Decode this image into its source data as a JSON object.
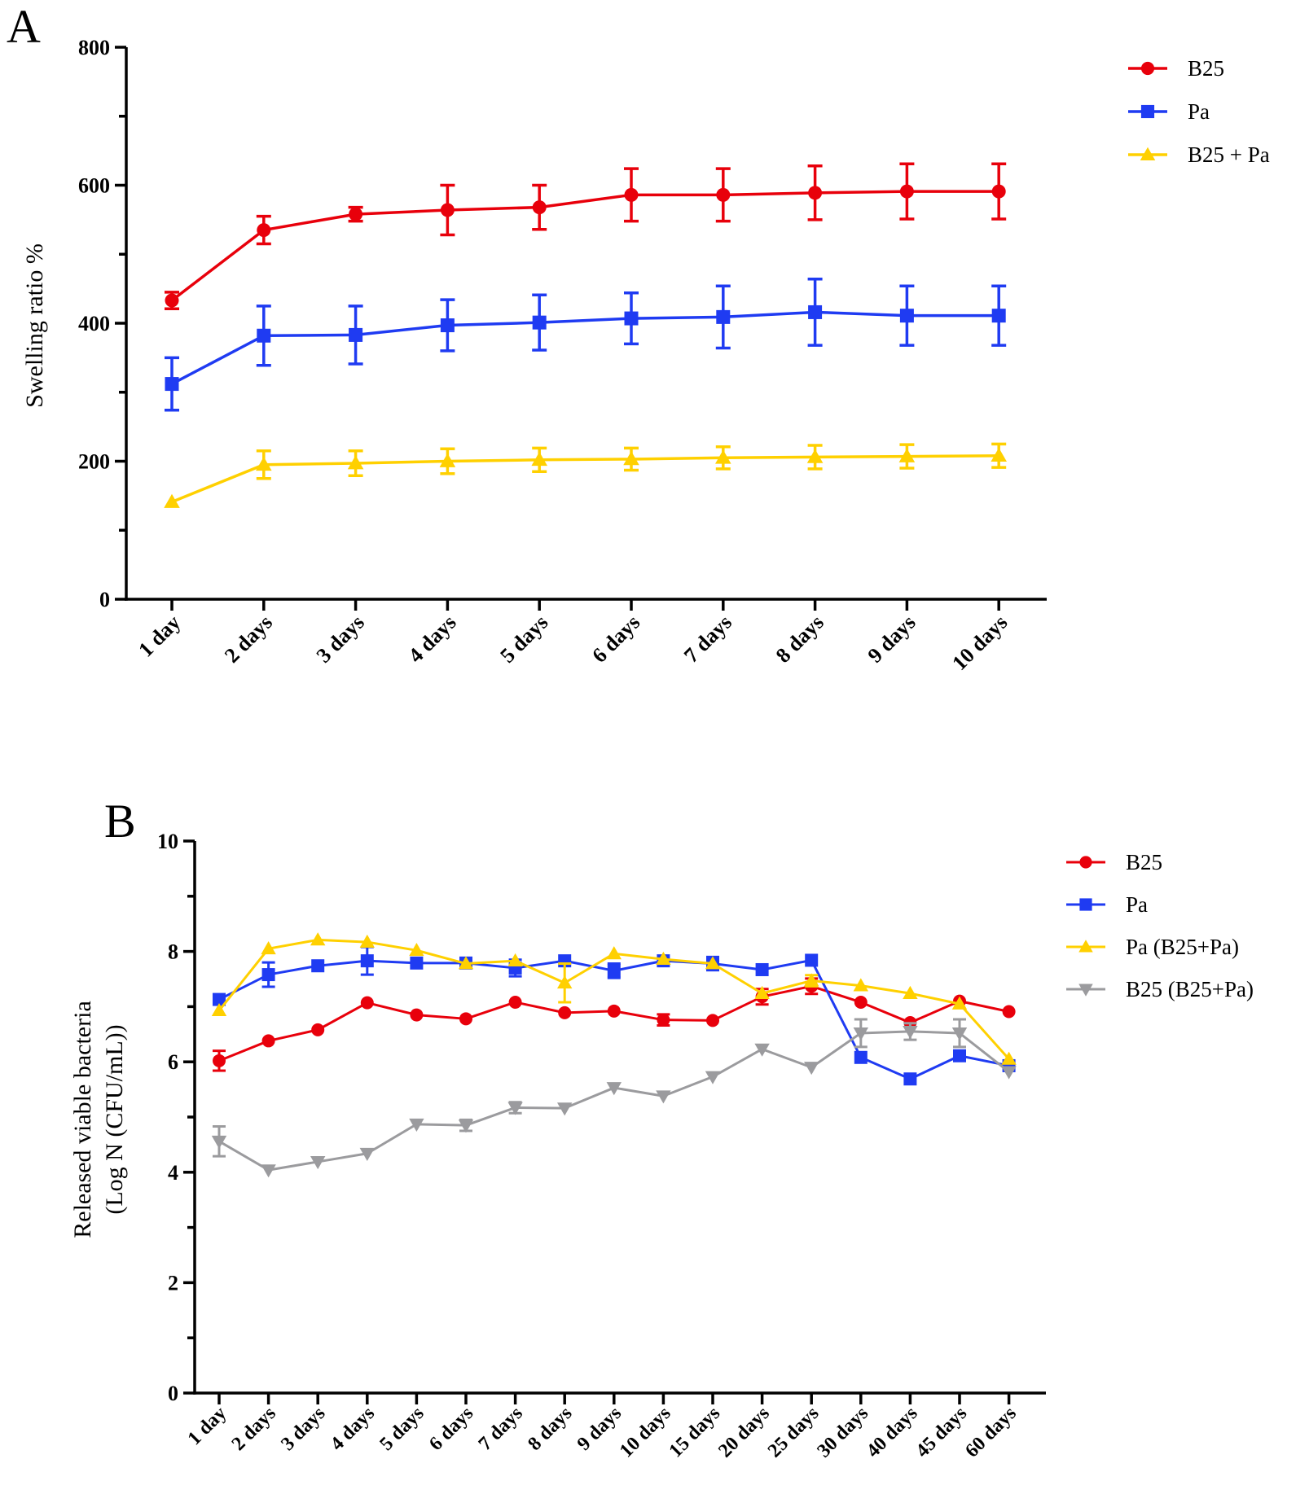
{
  "chart_data": [
    {
      "panel": "A",
      "type": "line",
      "title": "",
      "xlabel": "",
      "ylabel": "Swelling ratio %",
      "ylim": [
        0,
        800
      ],
      "yticks": [
        0,
        200,
        400,
        600,
        800
      ],
      "grid": false,
      "legend_position": "top-right",
      "categories": [
        "1 day",
        "2 days",
        "3 days",
        "4 days",
        "5 days",
        "6 days",
        "7 days",
        "8 days",
        "9 days",
        "10 days"
      ],
      "series": [
        {
          "name": "B25",
          "color": "#e8000b",
          "marker": "circle",
          "values": [
            433,
            535,
            558,
            564,
            568,
            586,
            586,
            589,
            591,
            591
          ],
          "errors": [
            12,
            20,
            10,
            36,
            32,
            38,
            38,
            39,
            40,
            40
          ]
        },
        {
          "name": "Pa",
          "color": "#1f3bf2",
          "marker": "square",
          "values": [
            312,
            382,
            383,
            397,
            401,
            407,
            409,
            416,
            411,
            411
          ],
          "errors": [
            38,
            43,
            42,
            37,
            40,
            37,
            45,
            48,
            43,
            43
          ]
        },
        {
          "name": "B25 + Pa",
          "color": "#ffd000",
          "marker": "triangle-up",
          "values": [
            141,
            195,
            197,
            200,
            202,
            203,
            205,
            206,
            207,
            208
          ],
          "errors": [
            0,
            20,
            18,
            18,
            17,
            16,
            16,
            17,
            17,
            17
          ]
        }
      ]
    },
    {
      "panel": "B",
      "type": "line",
      "title": "",
      "xlabel": "",
      "ylabel": "Released viable bacteria",
      "ylabel2": "(Log N (CFU/mL))",
      "ylim": [
        0,
        10
      ],
      "yticks": [
        0,
        2,
        4,
        6,
        8,
        10
      ],
      "grid": false,
      "legend_position": "top-right",
      "categories": [
        "1 day",
        "2 days",
        "3 days",
        "4 days",
        "5 days",
        "6 days",
        "7 days",
        "8 days",
        "9 days",
        "10 days",
        "15 days",
        "20 days",
        "25 days",
        "30 days",
        "40 days",
        "45 days",
        "60 days"
      ],
      "series": [
        {
          "name": "B25",
          "color": "#e8000b",
          "marker": "circle",
          "values": [
            6.02,
            6.38,
            6.58,
            7.07,
            6.85,
            6.78,
            7.08,
            6.89,
            6.92,
            6.76,
            6.75,
            7.18,
            7.37,
            7.08,
            6.71,
            7.1,
            6.91
          ],
          "errors": [
            0.18,
            0,
            0,
            0,
            0,
            0,
            0,
            0,
            0,
            0.1,
            0,
            0.14,
            0.14,
            0,
            0,
            0,
            0
          ]
        },
        {
          "name": "Pa",
          "color": "#1f3bf2",
          "marker": "square",
          "values": [
            7.13,
            7.58,
            7.74,
            7.83,
            7.79,
            7.79,
            7.7,
            7.83,
            7.65,
            7.83,
            7.78,
            7.67,
            7.84,
            6.08,
            5.69,
            6.11,
            5.93
          ],
          "errors": [
            0,
            0.22,
            0,
            0.25,
            0,
            0,
            0.15,
            0,
            0.13,
            0,
            0.12,
            0,
            0,
            0,
            0,
            0,
            0
          ]
        },
        {
          "name": "Pa (B25+Pa)",
          "color": "#ffd000",
          "marker": "triangle-up",
          "values": [
            6.93,
            8.05,
            8.21,
            8.17,
            8.02,
            7.78,
            7.83,
            7.43,
            7.96,
            7.86,
            7.78,
            7.24,
            7.47,
            7.38,
            7.24,
            7.05,
            6.05
          ],
          "errors": [
            0,
            0,
            0,
            0,
            0,
            0,
            0,
            0.35,
            0,
            0,
            0,
            0,
            0.1,
            0,
            0,
            0,
            0
          ]
        },
        {
          "name": "B25 (B25+Pa)",
          "color": "#9b9b9e",
          "marker": "triangle-down",
          "values": [
            4.56,
            4.04,
            4.19,
            4.34,
            4.87,
            4.85,
            5.17,
            5.16,
            5.53,
            5.38,
            5.73,
            6.23,
            5.9,
            6.52,
            6.55,
            6.52,
            5.82
          ],
          "errors": [
            0.27,
            0,
            0,
            0,
            0,
            0.1,
            0.1,
            0,
            0,
            0,
            0,
            0,
            0,
            0.25,
            0.15,
            0.25,
            0
          ]
        }
      ]
    }
  ]
}
